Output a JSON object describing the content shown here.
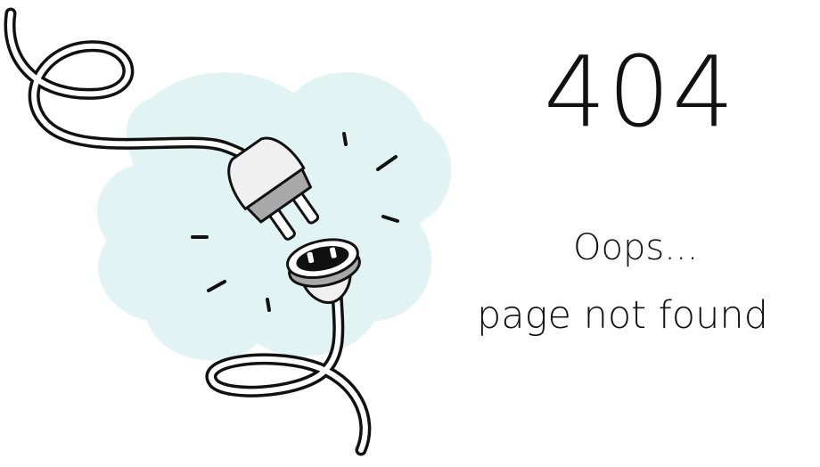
{
  "error": {
    "code": "404",
    "headline": "Oops...",
    "message": "page not found"
  },
  "illustration": {
    "subject": "unplugged-cable",
    "cloud_color": "#e2f3f3",
    "plug_color": "#f0f0f0",
    "accent_color": "#a9a9a9",
    "outline_color": "#111111"
  }
}
